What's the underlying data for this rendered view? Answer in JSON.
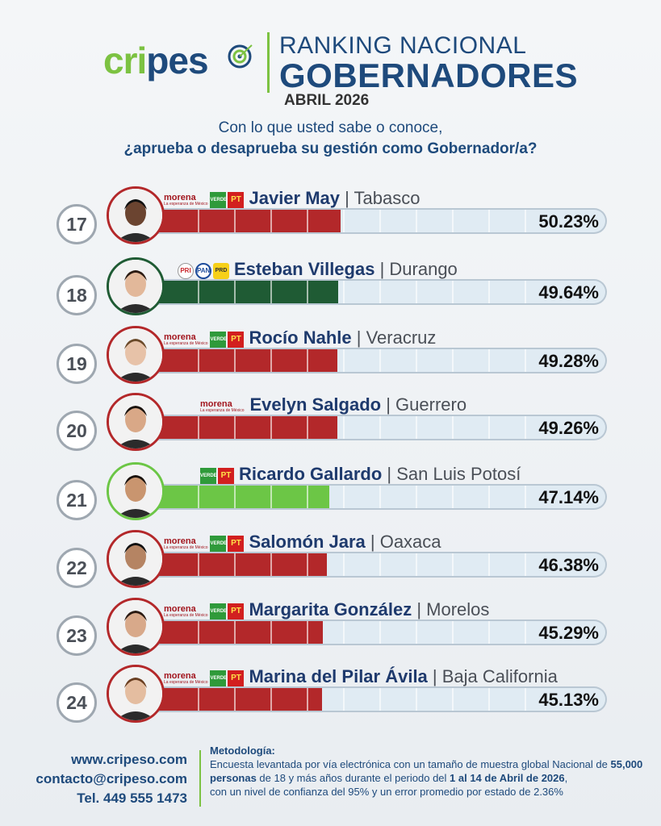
{
  "header": {
    "logo_left": "cripes",
    "logo_right": "o",
    "title_line1": "RANKING NACIONAL",
    "title_line2": "GOBERNADORES",
    "date": "ABRIL 2026"
  },
  "question": {
    "line1": "Con lo que usted sabe o conoce,",
    "line2": "¿aprueba o desaprueba su gestión como Gobernador/a?"
  },
  "parties": {
    "morena": "morena",
    "morena_tag": "La esperanza de México",
    "verde": "VERDE",
    "pt": "PT",
    "pri": "PRI",
    "pan": "PAN",
    "prd": "PRD"
  },
  "chart_data": {
    "type": "bar",
    "orientation": "horizontal",
    "xlim": [
      0,
      100
    ],
    "rows": [
      {
        "rank": "17",
        "name": "Javier May",
        "state": "Tabasco",
        "value": 50.23,
        "label": "50.23%",
        "parties": [
          "morena",
          "verde",
          "pt"
        ],
        "color": "#b3282a",
        "ring": "#b3282a"
      },
      {
        "rank": "18",
        "name": "Esteban Villegas",
        "state": "Durango",
        "value": 49.64,
        "label": "49.64%",
        "parties": [
          "pri",
          "pan",
          "prd"
        ],
        "color": "#1f5b34",
        "ring": "#1f5b34"
      },
      {
        "rank": "19",
        "name": "Rocío Nahle",
        "state": "Veracruz",
        "value": 49.28,
        "label": "49.28%",
        "parties": [
          "morena",
          "verde",
          "pt"
        ],
        "color": "#b3282a",
        "ring": "#b3282a"
      },
      {
        "rank": "20",
        "name": "Evelyn Salgado",
        "state": "Guerrero",
        "value": 49.26,
        "label": "49.26%",
        "parties": [
          "morena"
        ],
        "color": "#b3282a",
        "ring": "#b3282a"
      },
      {
        "rank": "21",
        "name": "Ricardo Gallardo",
        "state": "San Luis Potosí",
        "value": 47.14,
        "label": "47.14%",
        "parties": [
          "verde",
          "pt"
        ],
        "color": "#6cc646",
        "ring": "#6cc646"
      },
      {
        "rank": "22",
        "name": "Salomón Jara",
        "state": "Oaxaca",
        "value": 46.38,
        "label": "46.38%",
        "parties": [
          "morena",
          "verde",
          "pt"
        ],
        "color": "#b3282a",
        "ring": "#b3282a"
      },
      {
        "rank": "23",
        "name": "Margarita González",
        "state": "Morelos",
        "value": 45.29,
        "label": "45.29%",
        "parties": [
          "morena",
          "verde",
          "pt"
        ],
        "color": "#b3282a",
        "ring": "#b3282a"
      },
      {
        "rank": "24",
        "name": "Marina del Pilar Ávila",
        "state": "Baja California",
        "value": 45.13,
        "label": "45.13%",
        "parties": [
          "morena",
          "verde",
          "pt"
        ],
        "color": "#b3282a",
        "ring": "#b3282a"
      }
    ]
  },
  "footer": {
    "web": "www.cripeso.com",
    "email": "contacto@cripeso.com",
    "phone": "Tel. 449 555 1473",
    "method_title": "Metodología:",
    "method_p1": "Encuesta levantada por vía electrónica con un tamaño de muestra global Nacional de",
    "method_bold1": "55,000 personas",
    "method_p2": " de 18 y más años durante el periodo del ",
    "method_bold2": "1 al 14 de Abril de 2026",
    "method_p3": ",",
    "method_p4": "con un nivel de confianza del 95% y un error promedio por estado de 2.36%"
  }
}
